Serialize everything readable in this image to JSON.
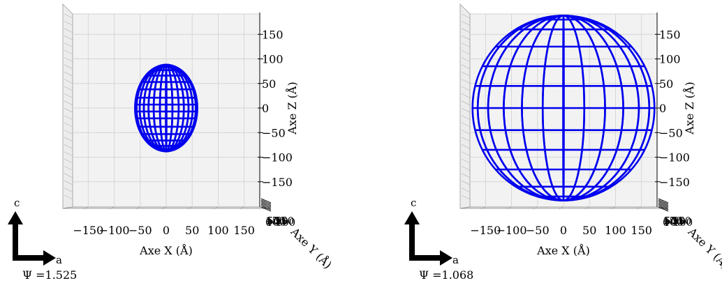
{
  "chart_data": [
    {
      "type": "3d-wireframe",
      "title": "",
      "xlabel": "Axe X (Å)",
      "ylabel": "Axe Y (Å)",
      "zlabel": "Axe Z (Å)",
      "view": "looking along Y axis (X–Z projection)",
      "xlim": [
        -180,
        180
      ],
      "zlim": [
        -180,
        180
      ],
      "x_ticks": [
        -150,
        -100,
        -50,
        0,
        50,
        100,
        150
      ],
      "z_ticks": [
        -150,
        -100,
        -50,
        0,
        50,
        100,
        150
      ],
      "y_tick_labels_overlapping": [
        "150",
        "100",
        "50",
        "0",
        "−50",
        "−100",
        "−150"
      ],
      "grid": true,
      "shape": "ellipsoid",
      "semi_axis_x": 60,
      "semi_axis_z": 88,
      "center": [
        0,
        0,
        0
      ],
      "meridian_x_positions": [
        -57,
        -51,
        -43,
        -34,
        -24,
        -12,
        0,
        12,
        24,
        34,
        43,
        51,
        57
      ],
      "parallel_z_positions": [
        -84,
        -77,
        -66,
        -53,
        -38,
        -21,
        -7,
        7,
        21,
        38,
        53,
        66,
        77,
        84
      ],
      "wire_color": "#0000ee",
      "axis_indicator": {
        "up_label": "c",
        "right_label": "a"
      },
      "psi_label": "Ψ =1.525"
    },
    {
      "type": "3d-wireframe",
      "title": "",
      "xlabel": "Axe X (Å)",
      "ylabel": "Axe Y (Å)",
      "zlabel": "Axe Z (Å)",
      "view": "looking along Y axis (X–Z projection)",
      "xlim": [
        -180,
        180
      ],
      "zlim": [
        -180,
        180
      ],
      "x_ticks": [
        -150,
        -100,
        -50,
        0,
        50,
        100,
        150
      ],
      "z_ticks": [
        -150,
        -100,
        -50,
        0,
        50,
        100,
        150
      ],
      "y_tick_labels_overlapping": [
        "150",
        "100",
        "50",
        "0",
        "−50",
        "−100",
        "−150"
      ],
      "grid": true,
      "shape": "sphere",
      "semi_axis_x": 175,
      "semi_axis_z": 188,
      "center": [
        0,
        0,
        0
      ],
      "meridian_x_positions": [
        -165,
        -145,
        -115,
        -80,
        -40,
        0,
        40,
        80,
        115,
        145,
        165
      ],
      "parallel_z_positions": [
        -180,
        -160,
        -125,
        -85,
        -45,
        0,
        45,
        85,
        125,
        160,
        180
      ],
      "wire_color": "#0000ee",
      "axis_indicator": {
        "up_label": "c",
        "right_label": "a"
      },
      "psi_label": "Ψ =1.068"
    }
  ]
}
